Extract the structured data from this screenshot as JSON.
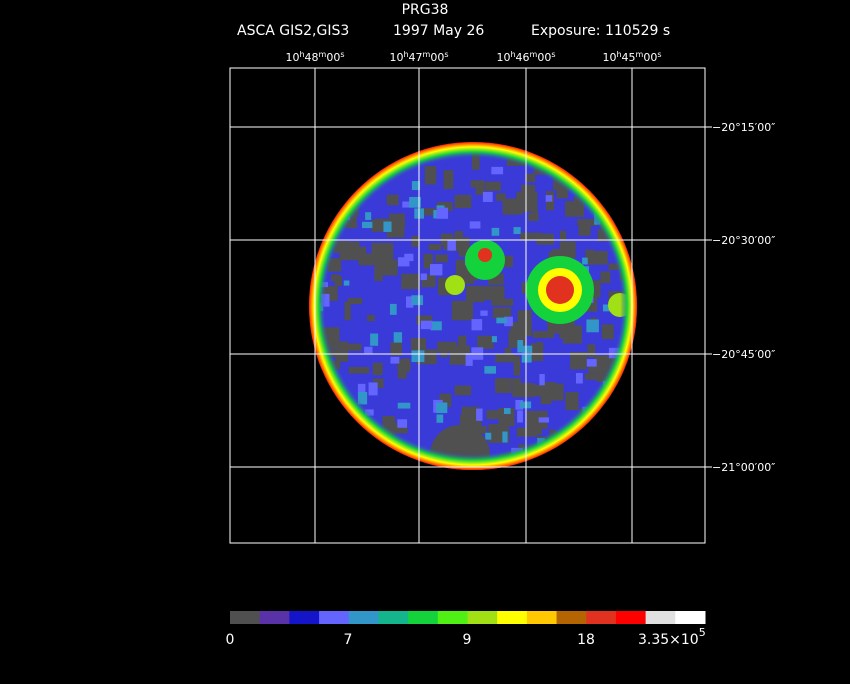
{
  "header": {
    "title": "PRG38",
    "instrument": "ASCA GIS2,GIS3",
    "date": "1997 May 26",
    "exposure": "Exposure: 110529 s"
  },
  "ra_units": [
    "h",
    "m",
    "s"
  ],
  "ra_labels": [
    {
      "h": "10",
      "m": "48",
      "s": "00"
    },
    {
      "h": "10",
      "m": "47",
      "s": "00"
    },
    {
      "h": "10",
      "m": "46",
      "s": "00"
    },
    {
      "h": "10",
      "m": "45",
      "s": "00"
    }
  ],
  "dec_labels": [
    "−20°15′00″",
    "−20°30′00″",
    "−20°45′00″",
    "−21°00′00″"
  ],
  "colorbar": {
    "colors": [
      "#505050",
      "#5a32a8",
      "#1414c8",
      "#6464ff",
      "#3296c8",
      "#14b48c",
      "#14d23c",
      "#50f014",
      "#a0e014",
      "#ffff00",
      "#ffc800",
      "#b46400",
      "#e0321e",
      "#ff0000",
      "#e0e0e0",
      "#ffffff"
    ],
    "labels": [
      "0",
      "7",
      "9",
      "18"
    ],
    "max_label": {
      "mantissa": "3.35×10",
      "exponent": "5"
    }
  }
}
